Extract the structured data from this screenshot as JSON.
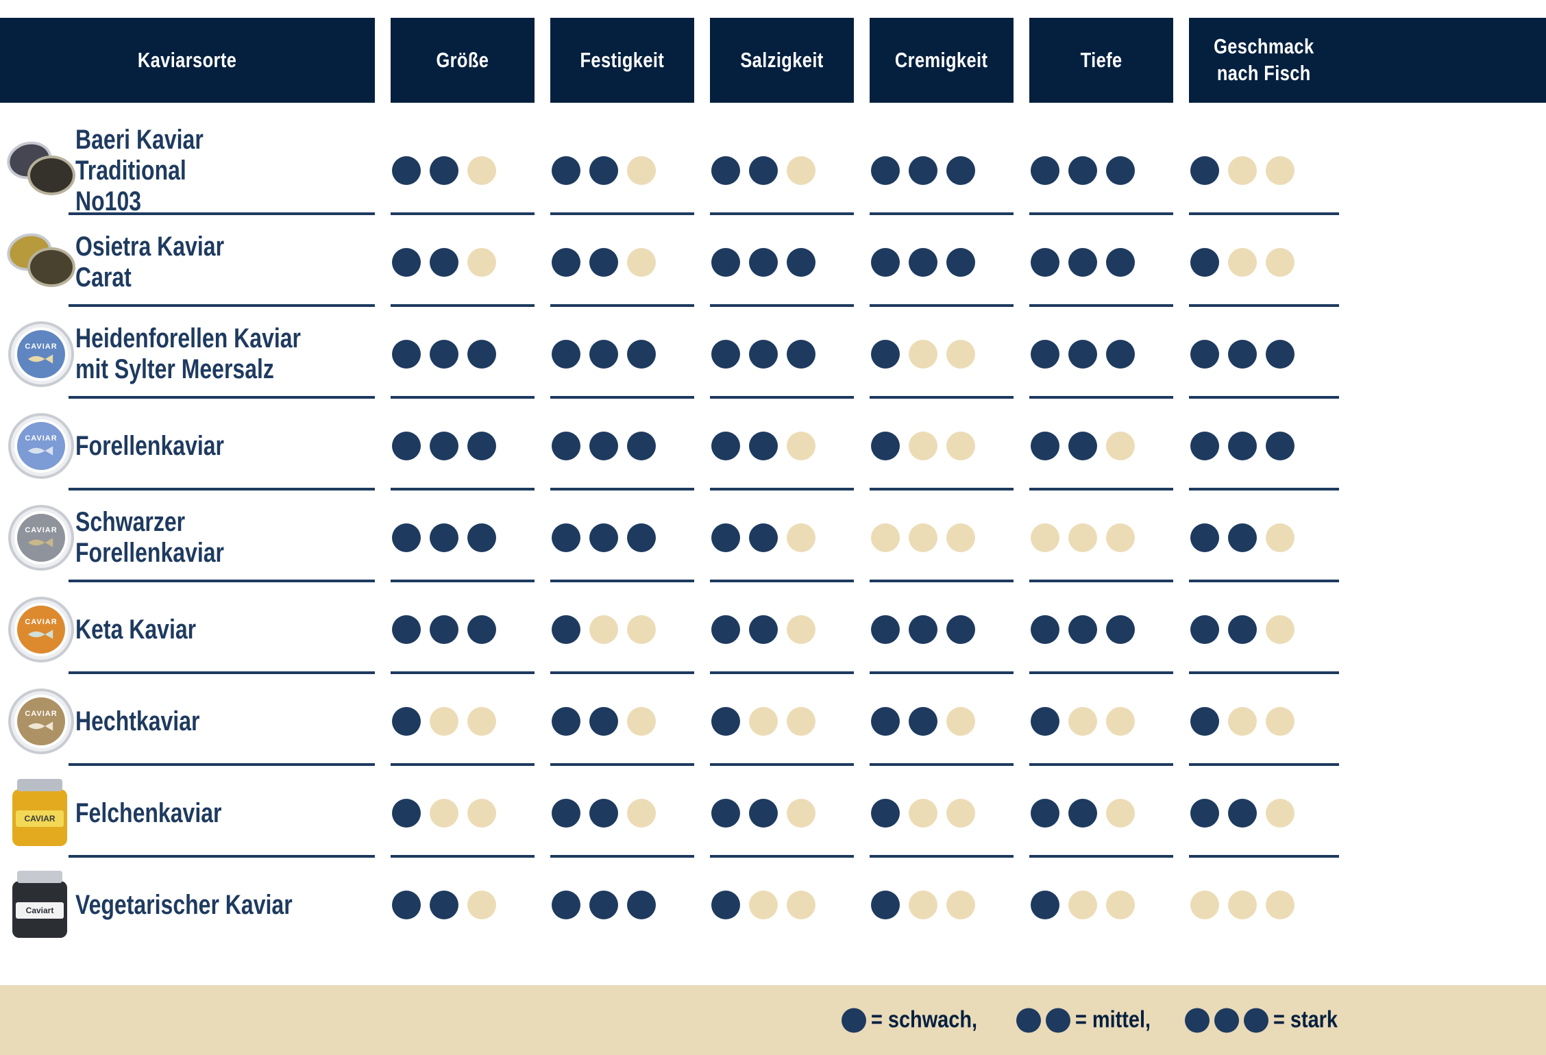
{
  "header": {
    "product_column": "Kaviarsorte",
    "columns": [
      "Größe",
      "Festigkeit",
      "Salzigkeit",
      "Cremigkeit",
      "Tiefe",
      "Geschmack\nnach Fisch"
    ]
  },
  "rows": [
    {
      "display_name": "Baeri Kaviar Traditional\nNo103",
      "ratings": [
        2,
        2,
        2,
        3,
        3,
        1
      ],
      "art": {
        "kind": "open-tin",
        "c1": "#464653",
        "c2": "#35322b"
      }
    },
    {
      "display_name": "Osietra Kaviar\nCarat",
      "ratings": [
        2,
        2,
        3,
        3,
        3,
        1
      ],
      "art": {
        "kind": "open-tin",
        "c1": "#b79a3c",
        "c2": "#49422e"
      }
    },
    {
      "display_name": "Heidenforellen Kaviar\nmit Sylter Meersalz",
      "ratings": [
        3,
        3,
        3,
        1,
        3,
        3
      ],
      "art": {
        "kind": "tin",
        "c1": "#5f86c0",
        "label": "CAVIAR",
        "fish": "#e8d9a8"
      }
    },
    {
      "display_name": "Forellenkaviar",
      "ratings": [
        3,
        3,
        2,
        1,
        2,
        3
      ],
      "art": {
        "kind": "tin",
        "c1": "#7d9bd4",
        "label": "CAVIAR",
        "fish": "#d8e2f0"
      }
    },
    {
      "display_name": "Schwarzer\nForellenkaviar",
      "ratings": [
        3,
        3,
        2,
        0,
        0,
        2
      ],
      "art": {
        "kind": "tin",
        "c1": "#8f939c",
        "label": "CAVIAR",
        "fish": "#c9b98a"
      }
    },
    {
      "display_name": "Keta Kaviar",
      "ratings": [
        3,
        1,
        2,
        3,
        3,
        2
      ],
      "art": {
        "kind": "tin",
        "c1": "#dd8a2f",
        "label": "CAVIAR",
        "fish": "#cfe0d8"
      }
    },
    {
      "display_name": "Hechtkaviar",
      "ratings": [
        1,
        2,
        1,
        2,
        1,
        1
      ],
      "art": {
        "kind": "tin",
        "c1": "#ad9266",
        "label": "CAVIAR",
        "fish": "#efe7d2"
      }
    },
    {
      "display_name": "Felchenkaviar",
      "ratings": [
        1,
        2,
        2,
        1,
        2,
        2
      ],
      "art": {
        "kind": "jar",
        "c1": "#e3aa1f",
        "c2": "#f2d855",
        "label": "CAVIAR",
        "labelColor": "#3a3a3a",
        "lid": "#b9bec6"
      }
    },
    {
      "display_name": "Vegetarischer Kaviar",
      "ratings": [
        2,
        3,
        1,
        1,
        1,
        0
      ],
      "art": {
        "kind": "jar",
        "c1": "#2b2f33",
        "c2": "#f2f2f2",
        "label": "Caviart",
        "labelColor": "#2b2f33",
        "lid": "#c6cad0"
      }
    }
  ],
  "legend": {
    "items": [
      {
        "dots": 1,
        "label": "= schwach,"
      },
      {
        "dots": 2,
        "label": "= mittel,"
      },
      {
        "dots": 3,
        "label": "= stark"
      }
    ]
  },
  "colors": {
    "header_background": "#05203f",
    "dot_active": "#1e3a5f",
    "dot_inactive": "#ecdcb6",
    "legend_bar_background": "#e9dab8",
    "header_text": "#ffffff",
    "name_text": "#1e3a5f"
  },
  "chart_data": {
    "type": "table",
    "title": "Kaviarsorten-Vergleich",
    "columns": [
      "Größe",
      "Festigkeit",
      "Salzigkeit",
      "Cremigkeit",
      "Tiefe",
      "Geschmack nach Fisch"
    ],
    "rows": [
      {
        "name": "Baeri Kaviar Traditional No103",
        "values": [
          2,
          2,
          2,
          3,
          3,
          1
        ]
      },
      {
        "name": "Osietra Kaviar Carat",
        "values": [
          2,
          2,
          3,
          3,
          3,
          1
        ]
      },
      {
        "name": "Heidenforellen Kaviar mit Sylter Meersalz",
        "values": [
          3,
          3,
          3,
          1,
          3,
          3
        ]
      },
      {
        "name": "Forellenkaviar",
        "values": [
          3,
          3,
          2,
          1,
          2,
          3
        ]
      },
      {
        "name": "Schwarzer Forellenkaviar",
        "values": [
          3,
          3,
          2,
          0,
          0,
          2
        ]
      },
      {
        "name": "Keta Kaviar",
        "values": [
          3,
          1,
          2,
          3,
          3,
          2
        ]
      },
      {
        "name": "Hechtkaviar",
        "values": [
          1,
          2,
          1,
          2,
          1,
          1
        ]
      },
      {
        "name": "Felchenkaviar",
        "values": [
          1,
          2,
          2,
          1,
          2,
          2
        ]
      },
      {
        "name": "Vegetarischer Kaviar",
        "values": [
          2,
          3,
          1,
          1,
          1,
          0
        ]
      }
    ],
    "scale": {
      "min": 0,
      "max": 3,
      "legend": {
        "1": "schwach",
        "2": "mittel",
        "3": "stark"
      }
    }
  }
}
